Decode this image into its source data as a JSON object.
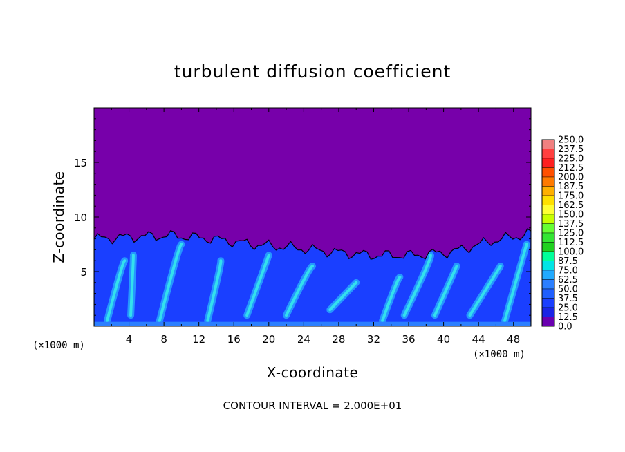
{
  "chart_data": {
    "type": "heatmap",
    "title": "turbulent diffusion coefficient",
    "xlabel": "X-coordinate",
    "ylabel": "Z-coordinate",
    "x_unit_left": "(×1000 m)",
    "x_unit_right": "(×1000 m)",
    "x_ticks": [
      "4",
      "8",
      "12",
      "16",
      "20",
      "24",
      "28",
      "32",
      "36",
      "40",
      "44",
      "48"
    ],
    "x_tick_values": [
      4,
      8,
      12,
      16,
      20,
      24,
      28,
      32,
      36,
      40,
      44,
      48
    ],
    "y_ticks": [
      "5",
      "10",
      "15"
    ],
    "y_tick_values": [
      5,
      10,
      15
    ],
    "xlim": [
      0,
      50
    ],
    "ylim": [
      0,
      20
    ],
    "footer": "CONTOUR INTERVAL = 2.000E+01",
    "colorbar": {
      "labels": [
        "250.0",
        "237.5",
        "225.0",
        "212.5",
        "200.0",
        "187.5",
        "175.0",
        "162.5",
        "150.0",
        "137.5",
        "125.0",
        "112.5",
        "100.0",
        "87.5",
        "75.0",
        "62.5",
        "50.0",
        "37.5",
        "25.0",
        "12.5",
        "0.0"
      ],
      "colors": [
        "#f08080",
        "#ff4040",
        "#ff2020",
        "#ff5000",
        "#ff7a00",
        "#ffb000",
        "#ffe000",
        "#ffff33",
        "#c8ff00",
        "#66ff33",
        "#33e633",
        "#1fd11f",
        "#00ff9a",
        "#00e5e5",
        "#22aaff",
        "#2b7fff",
        "#1f5fff",
        "#1a3fff",
        "#1a24e6",
        "#6a00b0"
      ]
    },
    "colors": {
      "background_level": "#7700aa",
      "turbulent_layer": "#1a3fff",
      "high_values": "#22ddee"
    },
    "field_description_top": [
      8.0,
      8.2,
      8.3,
      8.0,
      7.5,
      7.2,
      6.8,
      6.5,
      6.5,
      6.8,
      7.8,
      8.5
    ]
  }
}
